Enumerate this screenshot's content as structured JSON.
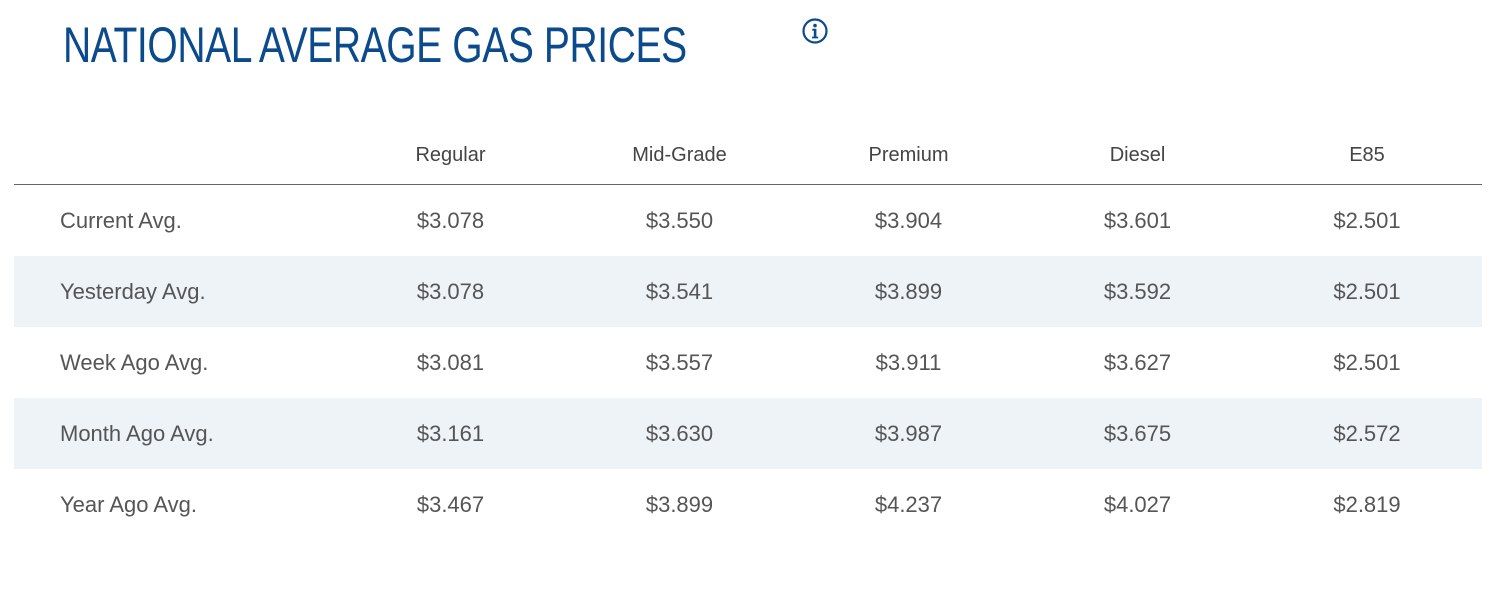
{
  "header": {
    "title": "NATIONAL AVERAGE GAS PRICES",
    "info_icon": "info-circle-icon"
  },
  "colors": {
    "title": "#0b4a8b",
    "stripe": "#eef3f8",
    "text": "#555555"
  },
  "table": {
    "columns": [
      "",
      "Regular",
      "Mid-Grade",
      "Premium",
      "Diesel",
      "E85"
    ],
    "rows": [
      {
        "label": "Current Avg.",
        "values": [
          "$3.078",
          "$3.550",
          "$3.904",
          "$3.601",
          "$2.501"
        ]
      },
      {
        "label": "Yesterday Avg.",
        "values": [
          "$3.078",
          "$3.541",
          "$3.899",
          "$3.592",
          "$2.501"
        ]
      },
      {
        "label": "Week Ago Avg.",
        "values": [
          "$3.081",
          "$3.557",
          "$3.911",
          "$3.627",
          "$2.501"
        ]
      },
      {
        "label": "Month Ago Avg.",
        "values": [
          "$3.161",
          "$3.630",
          "$3.987",
          "$3.675",
          "$2.572"
        ]
      },
      {
        "label": "Year Ago Avg.",
        "values": [
          "$3.467",
          "$3.899",
          "$4.237",
          "$4.027",
          "$2.819"
        ]
      }
    ]
  }
}
